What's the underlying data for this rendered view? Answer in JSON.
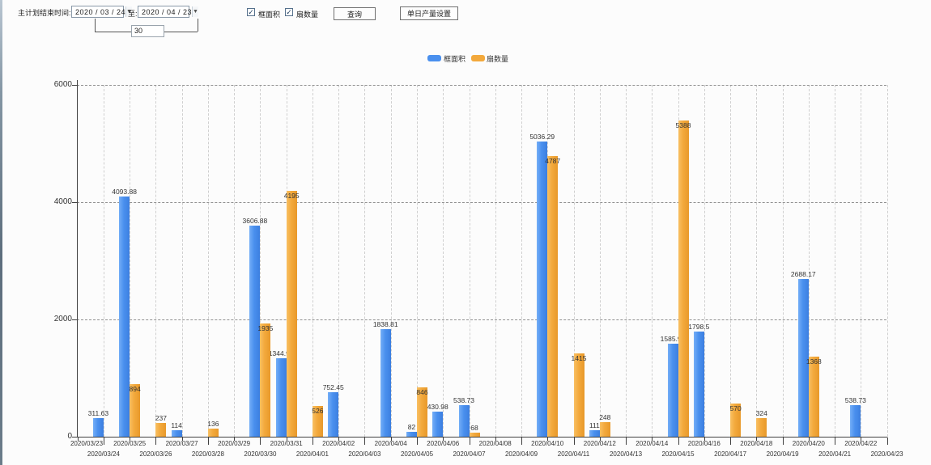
{
  "toolbar": {
    "label_end_time": "主计划结束时间:",
    "date_from": "2020 / 03 / 24",
    "label_to": "至:",
    "date_to": "2020 / 04 / 23",
    "interval_days": "30",
    "checkbox_area": {
      "label": "框面积",
      "checked": true
    },
    "checkbox_fans": {
      "label": "扇数量",
      "checked": true
    },
    "query_button": "查询",
    "daily_output_button": "单日产量设置"
  },
  "legend": {
    "items": [
      {
        "label": "框面积",
        "color": "#4a90ee"
      },
      {
        "label": "扇数量",
        "color": "#f3a93c"
      }
    ]
  },
  "chart_data": {
    "type": "bar",
    "title": "",
    "xlabel": "",
    "ylabel": "",
    "ylim": [
      0,
      6000
    ],
    "yticks": [
      0,
      2000,
      4000,
      6000
    ],
    "grid": true,
    "legend_position": "top",
    "categories": [
      "2020/03/23",
      "2020/03/24",
      "2020/03/25",
      "2020/03/26",
      "2020/03/27",
      "2020/03/28",
      "2020/03/29",
      "2020/03/30",
      "2020/03/31",
      "2020/04/01",
      "2020/04/02",
      "2020/04/03",
      "2020/04/04",
      "2020/04/05",
      "2020/04/06",
      "2020/04/07",
      "2020/04/08",
      "2020/04/09",
      "2020/04/10",
      "2020/04/11",
      "2020/04/12",
      "2020/04/13",
      "2020/04/14",
      "2020/04/15",
      "2020/04/16",
      "2020/04/17",
      "2020/04/18",
      "2020/04/19",
      "2020/04/20",
      "2020/04/21",
      "2020/04/22",
      "2020/04/23"
    ],
    "series": [
      {
        "name": "框面积",
        "color": "#4a90ee",
        "values": [
          null,
          311.63,
          4093.88,
          null,
          114,
          null,
          null,
          3606.88,
          1344.95,
          null,
          752.45,
          null,
          1838.81,
          82,
          430.98,
          538.73,
          null,
          null,
          5036.29,
          null,
          111,
          null,
          null,
          1585.96,
          1798.5,
          null,
          null,
          null,
          2688.17,
          null,
          538.73,
          null
        ]
      },
      {
        "name": "扇数量",
        "color": "#f3a93c",
        "values": [
          null,
          null,
          894,
          237,
          null,
          136,
          null,
          1935,
          4195,
          526,
          null,
          null,
          null,
          846,
          null,
          68,
          null,
          null,
          4787,
          1415,
          248,
          null,
          null,
          5388,
          null,
          570,
          324,
          null,
          1368,
          null,
          null,
          null
        ]
      }
    ]
  }
}
